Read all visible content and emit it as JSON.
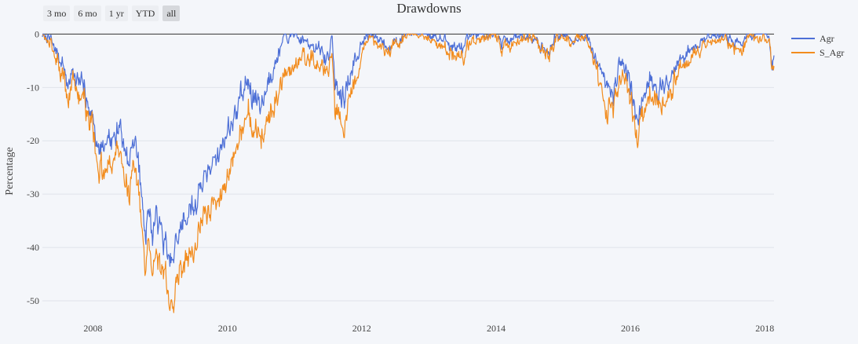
{
  "range_selector": {
    "buttons": [
      {
        "label": "3 mo",
        "active": false
      },
      {
        "label": "6 mo",
        "active": false
      },
      {
        "label": "1 yr",
        "active": false
      },
      {
        "label": "YTD",
        "active": false
      },
      {
        "label": "all",
        "active": true
      }
    ]
  },
  "chart_data": {
    "type": "line",
    "title": "Drawdowns",
    "xlabel": "",
    "ylabel": "Percentage",
    "x_tick_labels": [
      "2008",
      "2010",
      "2012",
      "2014",
      "2016",
      "2018"
    ],
    "y_ticks": [
      0,
      -10,
      -20,
      -30,
      -40,
      -50
    ],
    "xlim": [
      "2007-04-01",
      "2018-02-20"
    ],
    "ylim": [
      -52.5,
      0.5
    ],
    "grid": true,
    "legend_position": "right",
    "series": [
      {
        "name": "Agr",
        "color": "#4d6fd6",
        "points": [
          [
            "2007-04-01",
            0
          ],
          [
            "2007-05-15",
            -1
          ],
          [
            "2007-06-15",
            -3
          ],
          [
            "2007-07-20",
            -6
          ],
          [
            "2007-08-15",
            -9
          ],
          [
            "2007-09-20",
            -7
          ],
          [
            "2007-10-15",
            -10
          ],
          [
            "2007-11-15",
            -11
          ],
          [
            "2008-01-01",
            -15
          ],
          [
            "2008-01-25",
            -21
          ],
          [
            "2008-03-01",
            -22
          ],
          [
            "2008-04-01",
            -21
          ],
          [
            "2008-05-15",
            -17
          ],
          [
            "2008-06-15",
            -19
          ],
          [
            "2008-07-15",
            -24
          ],
          [
            "2008-08-10",
            -20
          ],
          [
            "2008-09-10",
            -25
          ],
          [
            "2008-09-25",
            -33
          ],
          [
            "2008-10-15",
            -37
          ],
          [
            "2008-10-25",
            -32
          ],
          [
            "2008-11-20",
            -38
          ],
          [
            "2008-12-10",
            -35
          ],
          [
            "2009-01-06",
            -36
          ],
          [
            "2009-02-01",
            -40
          ],
          [
            "2009-03-09",
            -43
          ],
          [
            "2009-04-15",
            -37
          ],
          [
            "2009-06-01",
            -33
          ],
          [
            "2009-07-10",
            -32
          ],
          [
            "2009-08-15",
            -28
          ],
          [
            "2009-10-01",
            -25
          ],
          [
            "2009-12-01",
            -21
          ],
          [
            "2010-01-15",
            -17
          ],
          [
            "2010-03-15",
            -12
          ],
          [
            "2010-04-25",
            -9
          ],
          [
            "2010-05-20",
            -12
          ],
          [
            "2010-07-05",
            -13
          ],
          [
            "2010-08-15",
            -8
          ],
          [
            "2010-09-15",
            -5
          ],
          [
            "2010-11-05",
            -1
          ],
          [
            "2010-12-25",
            0
          ],
          [
            "2011-02-01",
            -1
          ],
          [
            "2011-04-01",
            -2
          ],
          [
            "2011-05-15",
            -3
          ],
          [
            "2011-06-20",
            -5
          ],
          [
            "2011-07-25",
            -1
          ],
          [
            "2011-08-08",
            -9
          ],
          [
            "2011-09-05",
            -12
          ],
          [
            "2011-10-03",
            -12
          ],
          [
            "2011-11-01",
            -7
          ],
          [
            "2011-12-01",
            -5
          ],
          [
            "2012-01-01",
            -1
          ],
          [
            "2012-02-01",
            0
          ],
          [
            "2012-04-01",
            -1
          ],
          [
            "2012-06-01",
            -2
          ],
          [
            "2012-09-01",
            0
          ],
          [
            "2013-01-01",
            0
          ],
          [
            "2013-06-20",
            -3
          ],
          [
            "2013-09-01",
            0
          ],
          [
            "2014-01-01",
            0
          ],
          [
            "2014-02-01",
            -2
          ],
          [
            "2014-05-01",
            0
          ],
          [
            "2014-08-01",
            -1
          ],
          [
            "2014-10-15",
            -4
          ],
          [
            "2014-12-01",
            0
          ],
          [
            "2015-03-01",
            -1
          ],
          [
            "2015-05-01",
            0
          ],
          [
            "2015-08-24",
            -9
          ],
          [
            "2015-09-30",
            -11
          ],
          [
            "2015-11-01",
            -5
          ],
          [
            "2016-01-01",
            -8
          ],
          [
            "2016-02-11",
            -17
          ],
          [
            "2016-04-15",
            -8
          ],
          [
            "2016-06-27",
            -11
          ],
          [
            "2016-09-01",
            -6
          ],
          [
            "2016-11-15",
            -3
          ],
          [
            "2017-01-01",
            -2
          ],
          [
            "2017-03-01",
            0
          ],
          [
            "2017-06-01",
            0
          ],
          [
            "2017-08-15",
            -2
          ],
          [
            "2017-10-01",
            0
          ],
          [
            "2018-01-26",
            0
          ],
          [
            "2018-02-08",
            -6
          ],
          [
            "2018-02-20",
            -4
          ]
        ]
      },
      {
        "name": "S_Agr",
        "color": "#f28c1e",
        "points": [
          [
            "2007-04-01",
            0
          ],
          [
            "2007-05-15",
            -2
          ],
          [
            "2007-06-15",
            -4
          ],
          [
            "2007-07-20",
            -8
          ],
          [
            "2007-08-15",
            -11
          ],
          [
            "2007-09-20",
            -9
          ],
          [
            "2007-10-15",
            -12
          ],
          [
            "2007-11-15",
            -13
          ],
          [
            "2008-01-01",
            -17
          ],
          [
            "2008-01-25",
            -25
          ],
          [
            "2008-03-01",
            -26
          ],
          [
            "2008-04-01",
            -24
          ],
          [
            "2008-05-15",
            -22
          ],
          [
            "2008-06-15",
            -24
          ],
          [
            "2008-07-15",
            -30
          ],
          [
            "2008-08-10",
            -26
          ],
          [
            "2008-09-10",
            -30
          ],
          [
            "2008-09-25",
            -39
          ],
          [
            "2008-10-15",
            -43
          ],
          [
            "2008-10-25",
            -39
          ],
          [
            "2008-11-20",
            -45
          ],
          [
            "2008-12-10",
            -42
          ],
          [
            "2009-01-06",
            -43
          ],
          [
            "2009-02-01",
            -46
          ],
          [
            "2009-03-09",
            -51.5
          ],
          [
            "2009-04-15",
            -44
          ],
          [
            "2009-06-01",
            -41
          ],
          [
            "2009-07-10",
            -39
          ],
          [
            "2009-08-15",
            -35
          ],
          [
            "2009-10-01",
            -32
          ],
          [
            "2009-12-01",
            -30
          ],
          [
            "2010-01-15",
            -25
          ],
          [
            "2010-03-15",
            -19
          ],
          [
            "2010-04-25",
            -14
          ],
          [
            "2010-05-20",
            -18
          ],
          [
            "2010-07-05",
            -20
          ],
          [
            "2010-08-15",
            -15
          ],
          [
            "2010-09-15",
            -12
          ],
          [
            "2010-11-05",
            -8
          ],
          [
            "2010-12-25",
            -6
          ],
          [
            "2011-02-01",
            -4
          ],
          [
            "2011-04-01",
            -5
          ],
          [
            "2011-05-15",
            -6
          ],
          [
            "2011-06-20",
            -7
          ],
          [
            "2011-07-25",
            -3
          ],
          [
            "2011-08-08",
            -14
          ],
          [
            "2011-09-05",
            -16
          ],
          [
            "2011-10-03",
            -17
          ],
          [
            "2011-11-01",
            -11
          ],
          [
            "2011-12-01",
            -9
          ],
          [
            "2012-01-01",
            -3
          ],
          [
            "2012-02-01",
            -1
          ],
          [
            "2012-04-01",
            -2
          ],
          [
            "2012-06-01",
            -3
          ],
          [
            "2012-09-01",
            0
          ],
          [
            "2013-01-01",
            -1
          ],
          [
            "2013-06-20",
            -5
          ],
          [
            "2013-09-01",
            -1
          ],
          [
            "2014-01-01",
            0
          ],
          [
            "2014-02-01",
            -3
          ],
          [
            "2014-05-01",
            -1
          ],
          [
            "2014-08-01",
            -1
          ],
          [
            "2014-10-15",
            -5
          ],
          [
            "2014-12-01",
            -1
          ],
          [
            "2015-03-01",
            -1
          ],
          [
            "2015-05-01",
            0
          ],
          [
            "2015-08-24",
            -14
          ],
          [
            "2015-09-30",
            -15
          ],
          [
            "2015-11-01",
            -8
          ],
          [
            "2016-01-01",
            -11
          ],
          [
            "2016-02-11",
            -20
          ],
          [
            "2016-04-15",
            -11
          ],
          [
            "2016-06-27",
            -14
          ],
          [
            "2016-09-01",
            -8
          ],
          [
            "2016-11-15",
            -5
          ],
          [
            "2017-01-01",
            -3
          ],
          [
            "2017-03-01",
            -1
          ],
          [
            "2017-06-01",
            -1
          ],
          [
            "2017-08-15",
            -4
          ],
          [
            "2017-10-01",
            -1
          ],
          [
            "2018-01-26",
            -1
          ],
          [
            "2018-02-08",
            -8
          ],
          [
            "2018-02-20",
            -6
          ]
        ]
      }
    ]
  }
}
